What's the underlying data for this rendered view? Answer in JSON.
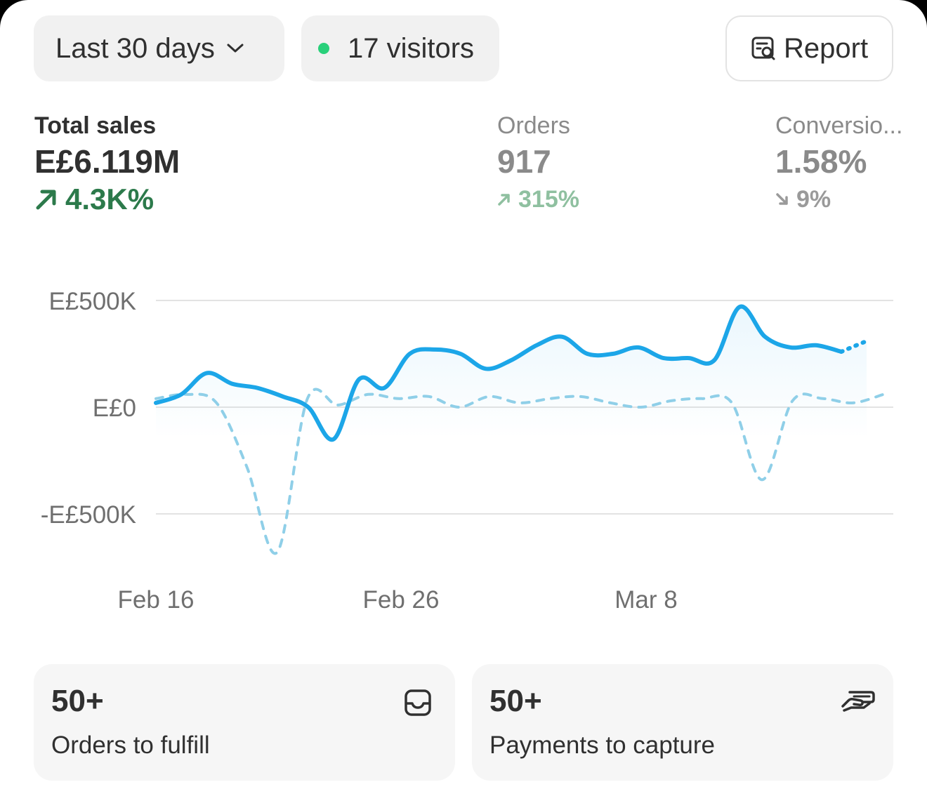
{
  "toolbar": {
    "date_range": "Last 30 days",
    "visitors": "17 visitors",
    "report": "Report"
  },
  "metrics": {
    "total_sales": {
      "label": "Total sales",
      "value": "E£6.119M",
      "change": "4.3K%"
    },
    "orders": {
      "label": "Orders",
      "value": "917",
      "change": "315%"
    },
    "conversion": {
      "label": "Conversio...",
      "value": "1.58%",
      "change": "9%"
    }
  },
  "colors": {
    "current_series": "#1ca6e8",
    "previous_series": "#8fcfe8",
    "positive": "#2c7a4b",
    "live_dot": "#29d07a"
  },
  "chart_data": {
    "type": "line",
    "xlabel": "",
    "ylabel": "",
    "y_ticks": [
      "E£500K",
      "E£0",
      "-E£500K"
    ],
    "y_tick_values": [
      500000,
      0,
      -500000
    ],
    "x_ticks": [
      "Feb 16",
      "Feb 26",
      "Mar 8"
    ],
    "x_tick_index": [
      0,
      10,
      20
    ],
    "ylim": [
      -500000,
      500000
    ],
    "grid": true,
    "series": [
      {
        "values": [
          20000,
          60000,
          160000,
          110000,
          90000,
          50000,
          0,
          -150000,
          130000,
          90000,
          250000,
          270000,
          250000,
          180000,
          220000,
          290000,
          330000,
          250000,
          250000,
          280000,
          230000,
          230000,
          220000,
          470000,
          330000,
          280000,
          290000,
          260000,
          310000
        ],
        "style": "solid",
        "partial_last_point": true
      },
      {
        "values": [
          40000,
          60000,
          20000,
          -280000,
          -680000,
          40000,
          10000,
          60000,
          40000,
          50000,
          0,
          50000,
          20000,
          40000,
          50000,
          20000,
          0,
          30000,
          40000,
          20000,
          -340000,
          30000,
          40000,
          20000,
          60000
        ],
        "style": "dashed"
      }
    ]
  },
  "cards": [
    {
      "count": "50+",
      "label": "Orders to fulfill",
      "icon": "inbox-icon"
    },
    {
      "count": "50+",
      "label": "Payments to capture",
      "icon": "hand-cash-icon"
    }
  ]
}
